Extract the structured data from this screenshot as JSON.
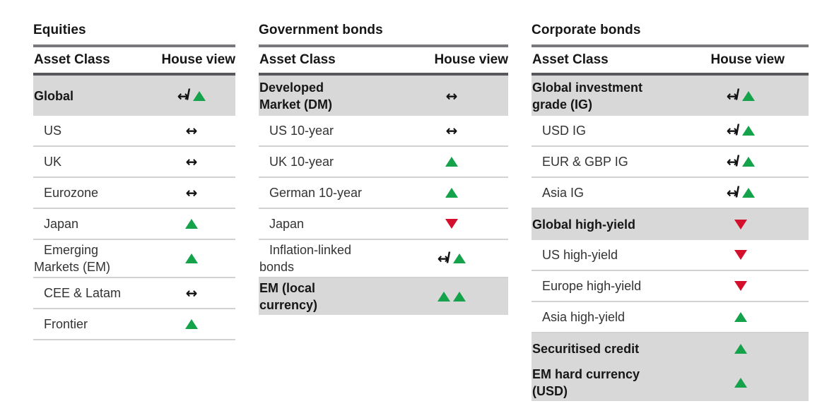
{
  "colors": {
    "green": "#14a24a",
    "red": "#d40f2b",
    "row_highlight": "#d8d8d8"
  },
  "view_legend": {
    "neutral": "sideways arrow",
    "up": "green up triangle",
    "down": "red down triangle",
    "neutral-up": "sideways arrow with slash plus green up triangle",
    "double-up": "two green up triangles"
  },
  "tables": [
    {
      "title": "Equities",
      "columns": {
        "asset": "Asset Class",
        "view": "House view"
      },
      "rows": [
        {
          "label": "Global",
          "view": "neutral-up",
          "highlight": true
        },
        {
          "label": "US",
          "view": "neutral",
          "highlight": false
        },
        {
          "label": "UK",
          "view": "neutral",
          "highlight": false
        },
        {
          "label": "Eurozone",
          "view": "neutral",
          "highlight": false
        },
        {
          "label": "Japan",
          "view": "up",
          "highlight": false
        },
        {
          "label": "Emerging\nMarkets (EM)",
          "view": "up",
          "highlight": false
        },
        {
          "label": "CEE & Latam",
          "view": "neutral",
          "highlight": false
        },
        {
          "label": "Frontier",
          "view": "up",
          "highlight": false
        }
      ]
    },
    {
      "title": "Government bonds",
      "columns": {
        "asset": "Asset Class",
        "view": "House view"
      },
      "rows": [
        {
          "label": "Developed\nMarket (DM)",
          "view": "neutral",
          "highlight": true
        },
        {
          "label": "US 10-year",
          "view": "neutral",
          "highlight": false
        },
        {
          "label": "UK 10-year",
          "view": "up",
          "highlight": false
        },
        {
          "label": "German 10-year",
          "view": "up",
          "highlight": false
        },
        {
          "label": "Japan",
          "view": "down",
          "highlight": false
        },
        {
          "label": "Inflation-linked\nbonds",
          "view": "neutral-up",
          "highlight": false
        },
        {
          "label": "EM (local\ncurrency)",
          "view": "double-up",
          "highlight": true
        }
      ]
    },
    {
      "title": "Corporate bonds",
      "columns": {
        "asset": "Asset Class",
        "view": "House view"
      },
      "rows": [
        {
          "label": "Global investment\ngrade (IG)",
          "view": "neutral-up",
          "highlight": true
        },
        {
          "label": "USD IG",
          "view": "neutral-up",
          "highlight": false
        },
        {
          "label": "EUR & GBP IG",
          "view": "neutral-up",
          "highlight": false
        },
        {
          "label": "Asia IG",
          "view": "neutral-up",
          "highlight": false
        },
        {
          "label": "Global high-yield",
          "view": "down",
          "highlight": true
        },
        {
          "label": "US high-yield",
          "view": "down",
          "highlight": false
        },
        {
          "label": "Europe high-yield",
          "view": "down",
          "highlight": false
        },
        {
          "label": "Asia high-yield",
          "view": "up",
          "highlight": false
        },
        {
          "label": "Securitised credit",
          "view": "up",
          "highlight": true
        },
        {
          "label": "EM hard currency\n(USD)",
          "view": "up",
          "highlight": true
        }
      ]
    }
  ]
}
